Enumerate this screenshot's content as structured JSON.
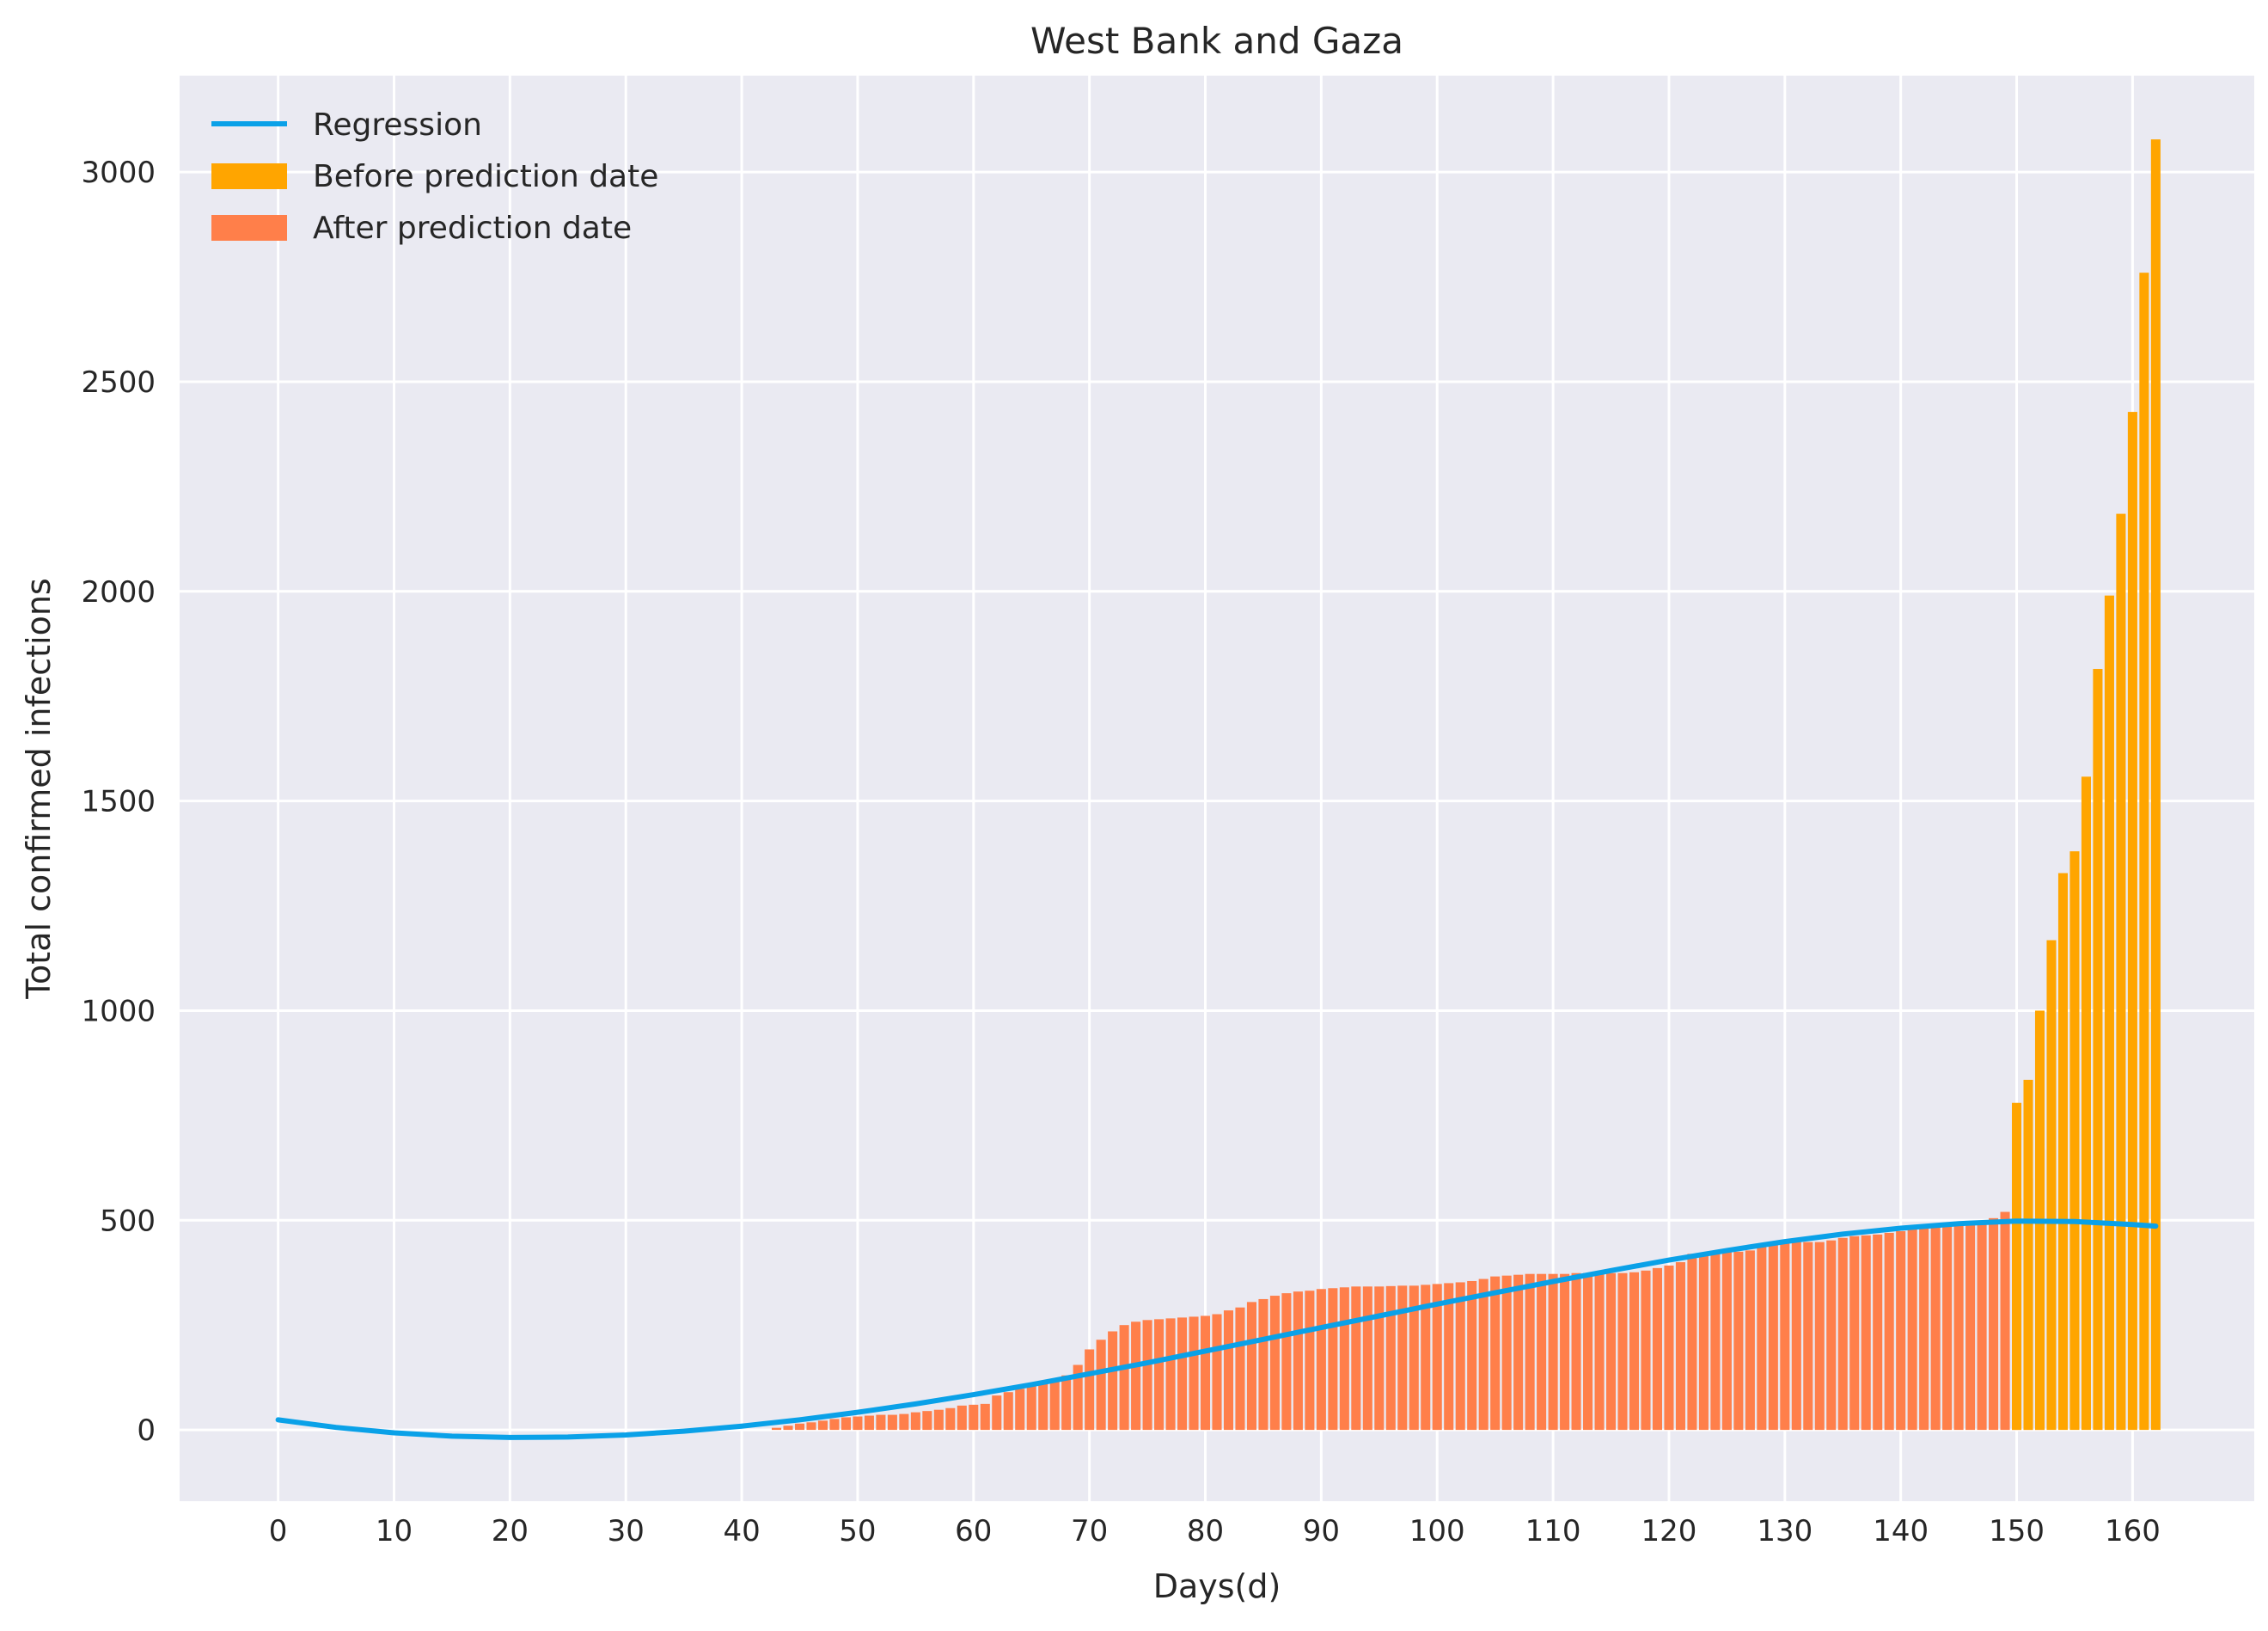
{
  "chart_data": {
    "type": "bar",
    "title": "West Bank and Gaza",
    "xlabel": "Days(d)",
    "ylabel": "Total confirmed infections",
    "xlim": [
      -8.5,
      170.5
    ],
    "ylim": [
      -170,
      3230
    ],
    "xticks": [
      "0",
      "10",
      "20",
      "30",
      "40",
      "50",
      "60",
      "70",
      "80",
      "90",
      "100",
      "110",
      "120",
      "130",
      "140",
      "150",
      "160"
    ],
    "yticks": [
      "0",
      "500",
      "1000",
      "1500",
      "2000",
      "2500",
      "3000"
    ],
    "grid": true,
    "legend_position": "top-left",
    "legend": [
      "Regression",
      "Before prediction date",
      "After prediction date"
    ],
    "colors": {
      "background": "#eaeaf2",
      "grid": "#ffffff",
      "regression": "#0aa1e8",
      "before": "#ffa500",
      "after": "#ff7f4a"
    },
    "series": [
      {
        "name": "After prediction date",
        "x_start": 43,
        "values": [
          5,
          10,
          15,
          18,
          22,
          26,
          30,
          32,
          34,
          36,
          36,
          38,
          42,
          45,
          48,
          52,
          58,
          60,
          62,
          82,
          90,
          98,
          108,
          115,
          122,
          130,
          155,
          192,
          215,
          235,
          250,
          258,
          262,
          264,
          266,
          268,
          270,
          272,
          276,
          285,
          292,
          305,
          312,
          320,
          326,
          330,
          332,
          336,
          338,
          340,
          342,
          342,
          342,
          343,
          344,
          344,
          346,
          348,
          350,
          352,
          355,
          360,
          366,
          368,
          370,
          372,
          372,
          372,
          372,
          374,
          374,
          374,
          374,
          374,
          376,
          380,
          386,
          392,
          400,
          420,
          422,
          424,
          424,
          425,
          428,
          436,
          444,
          446,
          448,
          448,
          448,
          452,
          458,
          462,
          464,
          466,
          470,
          474,
          480,
          484,
          486,
          488,
          490,
          492,
          496,
          505,
          520,
          552,
          600,
          672
        ]
      },
      {
        "name": "Before prediction date",
        "x_start": 150,
        "values": [
          780,
          835,
          1000,
          1168,
          1328,
          1380,
          1558,
          1815,
          1990,
          2185,
          2428,
          2760,
          3078
        ]
      }
    ],
    "regression": {
      "name": "Regression",
      "x": [
        0,
        5,
        10,
        15,
        20,
        25,
        30,
        35,
        40,
        45,
        50,
        55,
        60,
        65,
        70,
        75,
        80,
        85,
        90,
        95,
        100,
        105,
        110,
        115,
        120,
        125,
        130,
        135,
        140,
        145,
        150,
        155,
        160,
        162
      ],
      "y": [
        24,
        6,
        -7,
        -15,
        -18,
        -17,
        -12,
        -3,
        9,
        24,
        42,
        62,
        84,
        108,
        134,
        160,
        188,
        216,
        244,
        272,
        300,
        327,
        354,
        380,
        405,
        428,
        449,
        467,
        481,
        492,
        498,
        497,
        490,
        486
      ]
    }
  }
}
